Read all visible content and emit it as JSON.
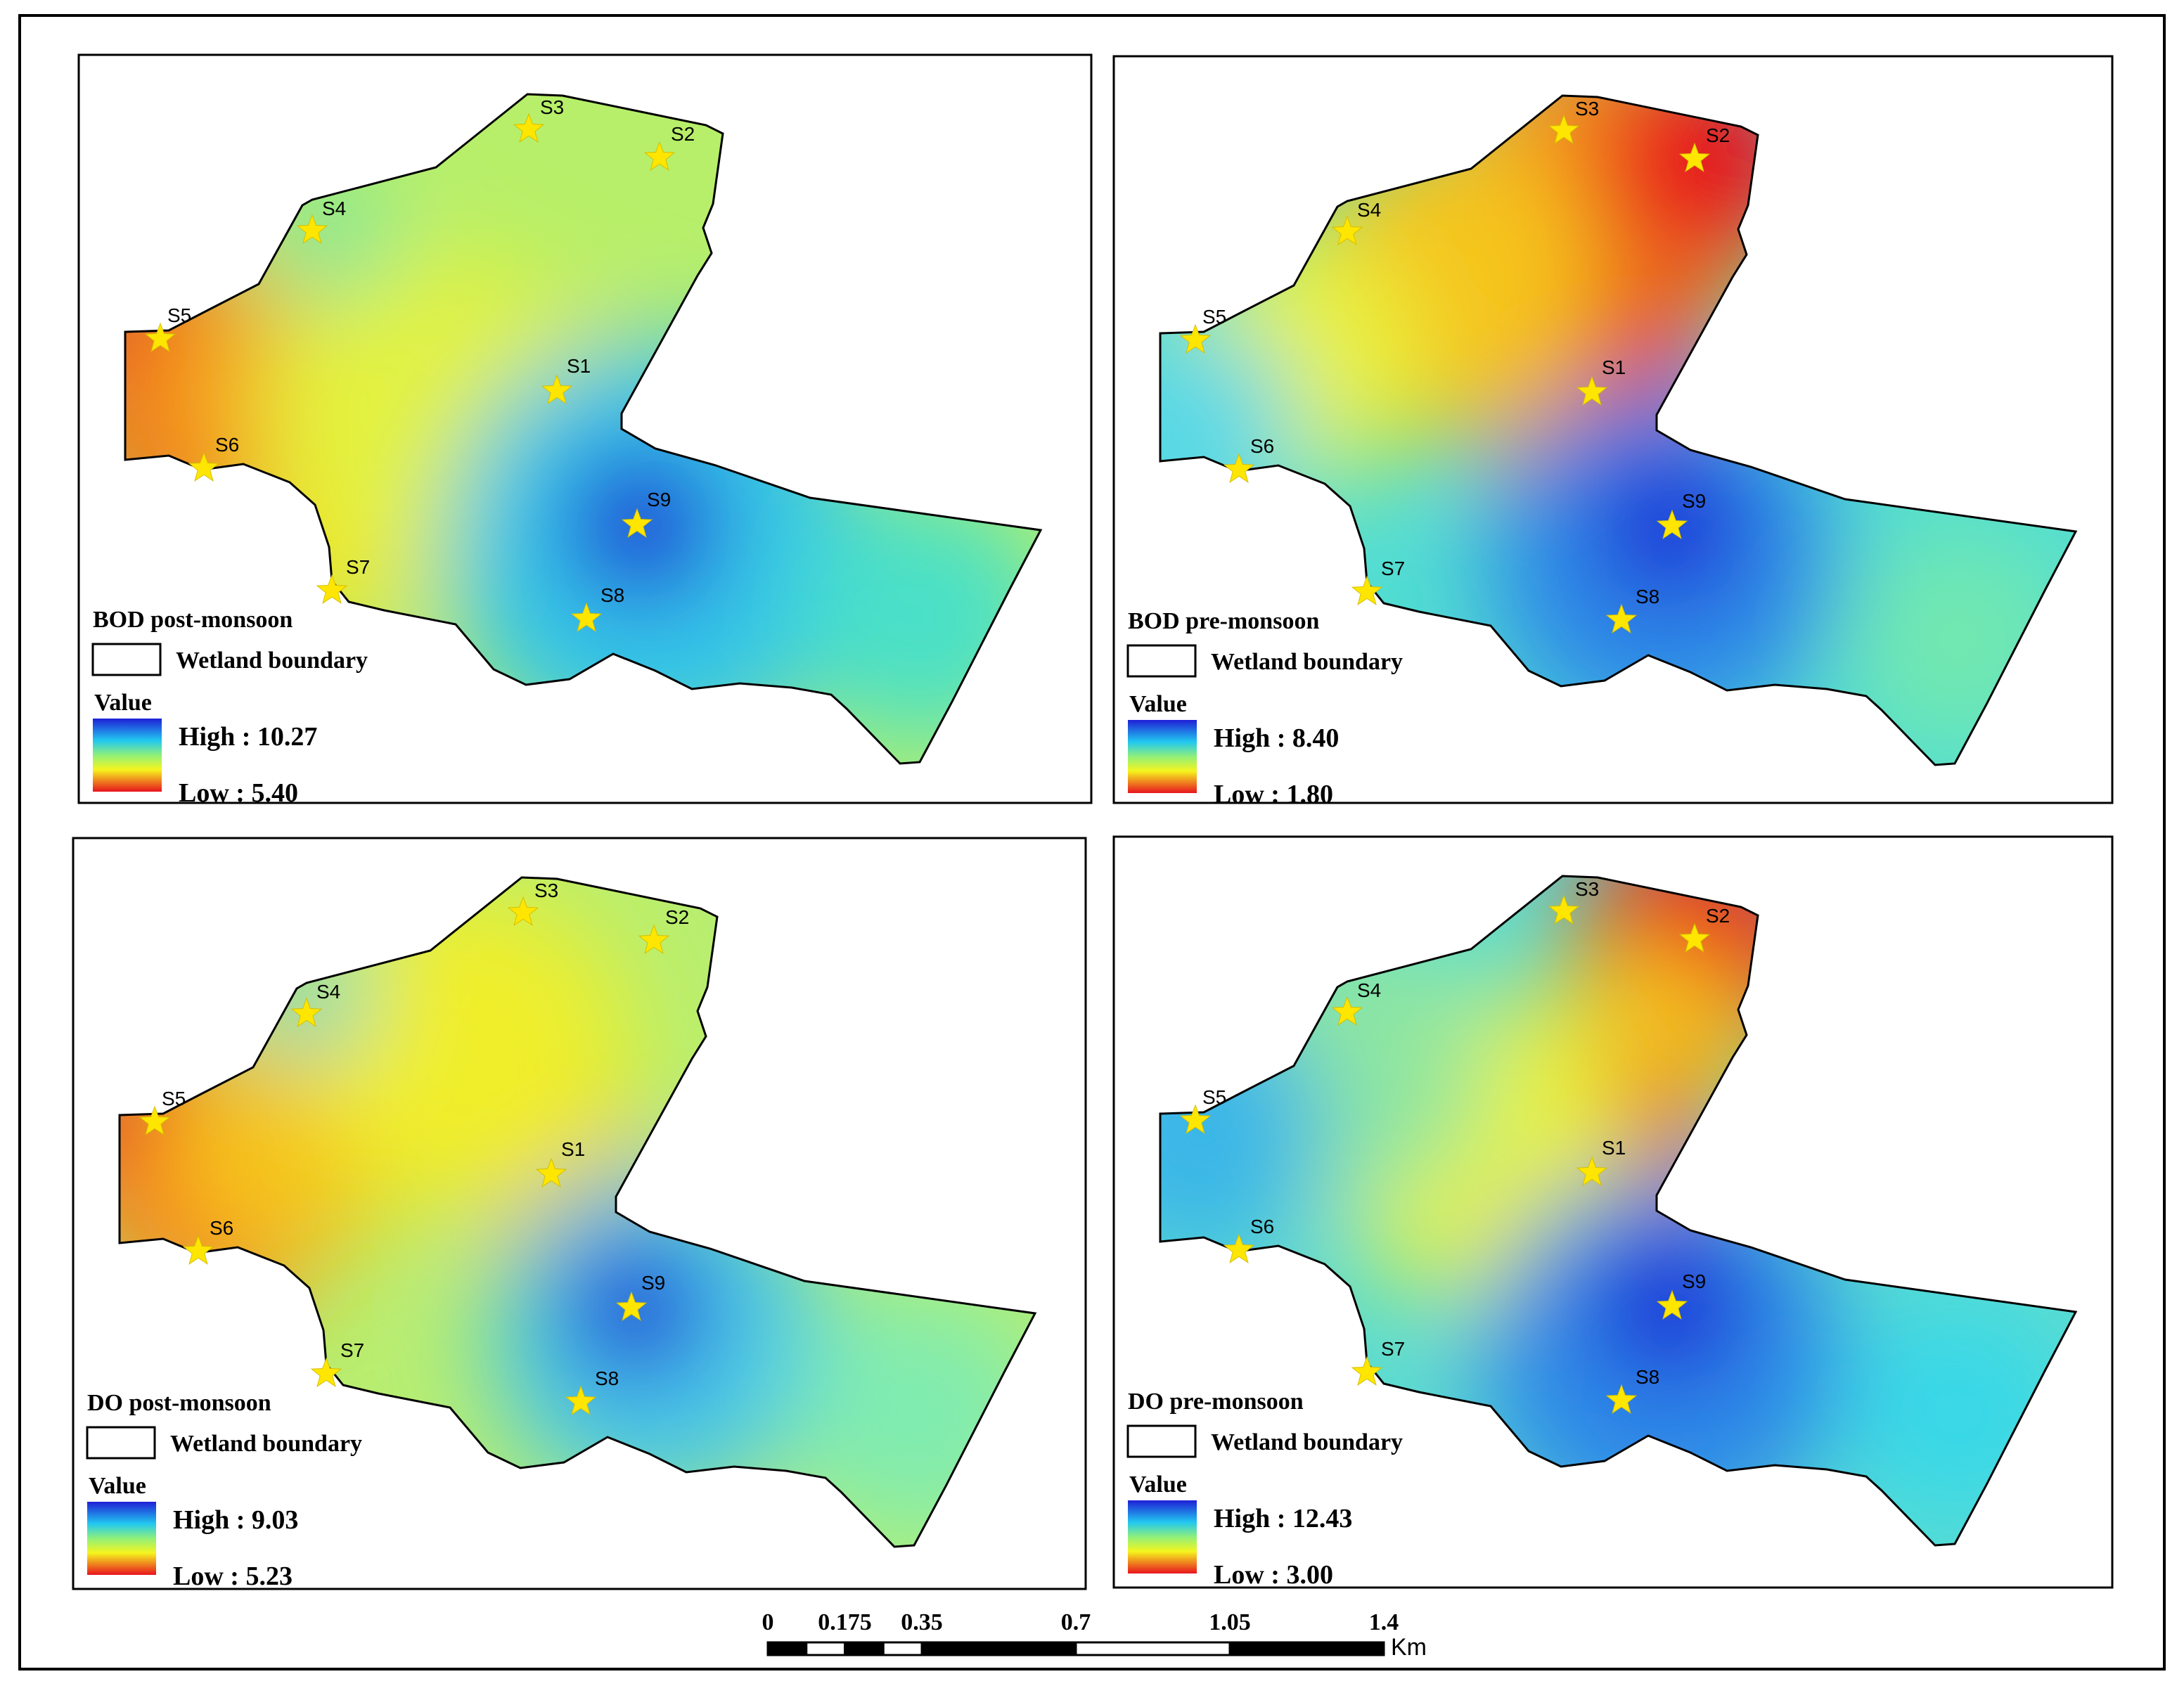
{
  "station_labels": [
    "S1",
    "S2",
    "S3",
    "S4",
    "S5",
    "S6",
    "S7",
    "S8",
    "S9"
  ],
  "legend_common": {
    "boundary_label": "Wetland boundary",
    "value_label": "Value"
  },
  "panels": [
    {
      "id": "bod-post",
      "title": "BOD post-monsoon",
      "high": "High : 10.27",
      "low": "Low : 5.40"
    },
    {
      "id": "bod-pre",
      "title": "BOD pre-monsoon",
      "high": "High : 8.40",
      "low": "Low : 1.80"
    },
    {
      "id": "do-post",
      "title": "DO post-monsoon",
      "high": "High : 9.03",
      "low": "Low : 5.23"
    },
    {
      "id": "do-pre",
      "title": "DO pre-monsoon",
      "high": "High : 12.43",
      "low": "Low : 3.00"
    }
  ],
  "scale_bar": {
    "ticks": [
      "0",
      "0.175",
      "0.35",
      "0.7",
      "1.05",
      "1.4"
    ],
    "unit": "Km"
  },
  "colors": {
    "high": "#1f1fd6",
    "mid": "#f5f51e",
    "low": "#e8141e",
    "station_star": "#ffe600"
  }
}
